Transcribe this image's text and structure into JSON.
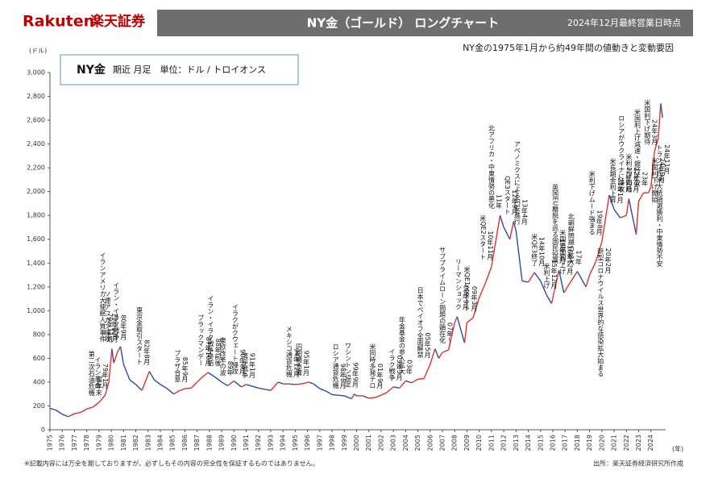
{
  "brand": {
    "name": "Rakuten",
    "name_ja": "楽天証券"
  },
  "footer": {
    "disclaimer": "※記載内容には万全を期しておりますが、必ずしもその内容の完全性を保証するものではありません。",
    "source": "出所：楽天証券経済研究所作成"
  },
  "chart_data": {
    "type": "line",
    "title": "NY金（ゴールド） ロングチャート",
    "date_note": "2024年12月最終営業日時点",
    "subtitle": "NY金の1975年1月から約49年間の値動きと変動要因",
    "box_note": "期近 月足　単位：ドル / トロイオンス",
    "y_label": "(ドル)",
    "x_label": "(年)",
    "xlim": [
      1975,
      2025.2
    ],
    "xticks": [
      1975,
      1976,
      1977,
      1978,
      1979,
      1980,
      1981,
      1982,
      1983,
      1984,
      1985,
      1986,
      1987,
      1988,
      1989,
      1990,
      1991,
      1992,
      1993,
      1994,
      1995,
      1996,
      1997,
      1998,
      1999,
      2000,
      2001,
      2002,
      2003,
      2004,
      2005,
      2006,
      2007,
      2008,
      2009,
      2010,
      2011,
      2012,
      2013,
      2014,
      2015,
      2016,
      2017,
      2018,
      2019,
      2020,
      2021,
      2022,
      2023,
      2024
    ],
    "ylim": [
      0,
      3000
    ],
    "yticks": [
      0,
      200,
      400,
      600,
      800,
      {
        "value": 1000,
        "label": "1,000"
      },
      {
        "value": 1200,
        "label": "1,200"
      },
      {
        "value": 1400,
        "label": "1,400"
      },
      {
        "value": 1600,
        "label": "1,600"
      },
      {
        "value": 1800,
        "label": "1,800"
      },
      {
        "value": 2000,
        "label": "2,000"
      },
      {
        "value": 2200,
        "label": "2,200"
      },
      {
        "value": 2400,
        "label": "2,400"
      },
      {
        "value": 2600,
        "label": "2,600"
      },
      {
        "value": 2800,
        "label": "2,800"
      },
      {
        "value": 3000,
        "label": "3,000"
      }
    ],
    "grid": false,
    "x": [
      1975,
      1975.5,
      1976,
      1976.5,
      1977,
      1977.5,
      1978,
      1978.5,
      1979,
      1979.5,
      1979.8,
      1980.05,
      1980.2,
      1980.5,
      1980.75,
      1981,
      1981.5,
      1982,
      1982.5,
      1983.1,
      1983.5,
      1984,
      1984.5,
      1985.1,
      1985.5,
      1986,
      1986.5,
      1987,
      1987.5,
      1987.9,
      1988.5,
      1989,
      1989.5,
      1990,
      1990.6,
      1991,
      1991.5,
      1992,
      1992.5,
      1993,
      1993.6,
      1994,
      1994.5,
      1995,
      1995.5,
      1996.1,
      1996.5,
      1997,
      1997.5,
      1998,
      1998.5,
      1999,
      1999.6,
      1999.8,
      2000,
      2000.5,
      2001,
      2001.5,
      2002,
      2002.5,
      2003,
      2003.5,
      2004,
      2004.5,
      2005,
      2005.5,
      2006,
      2006.4,
      2006.7,
      2007,
      2007.5,
      2008,
      2008.2,
      2008.8,
      2009,
      2009.5,
      2010,
      2010.5,
      2011,
      2011.7,
      2012,
      2012.5,
      2012.8,
      2013,
      2013.5,
      2014,
      2014.5,
      2015,
      2015.5,
      2015.9,
      2016.5,
      2016.9,
      2017.5,
      2018,
      2018.7,
      2019,
      2019.5,
      2020,
      2020.6,
      2021,
      2021.5,
      2022,
      2022.2,
      2022.8,
      2023,
      2023.4,
      2023.8,
      2024,
      2024.3,
      2024.6,
      2024.8,
      2024.95
    ],
    "series": [
      {
        "name": "NY金",
        "color": "#2a4aa8",
        "up_color": "#e0302a",
        "values": [
          180,
          165,
          130,
          110,
          135,
          145,
          175,
          190,
          230,
          290,
          400,
          680,
          560,
          650,
          700,
          550,
          420,
          380,
          330,
          490,
          420,
          380,
          350,
          300,
          325,
          345,
          350,
          400,
          450,
          480,
          440,
          400,
          370,
          410,
          360,
          380,
          365,
          350,
          340,
          330,
          400,
          385,
          385,
          380,
          385,
          400,
          385,
          345,
          325,
          295,
          290,
          285,
          260,
          300,
          285,
          285,
          265,
          270,
          290,
          315,
          360,
          350,
          410,
          395,
          425,
          430,
          550,
          680,
          600,
          650,
          670,
          900,
          950,
          730,
          900,
          940,
          1110,
          1230,
          1370,
          1800,
          1700,
          1600,
          1750,
          1670,
          1250,
          1240,
          1320,
          1250,
          1130,
          1060,
          1340,
          1150,
          1250,
          1330,
          1200,
          1300,
          1410,
          1580,
          1970,
          1850,
          1780,
          1800,
          1940,
          1640,
          1920,
          1990,
          1990,
          2040,
          2340,
          2450,
          2740,
          2620
        ]
      }
    ],
    "annotations": [
      {
        "x": 1978.7,
        "date": "78年末",
        "text": "第二次石油危機"
      },
      {
        "x": 1979.2,
        "date": "79年1月",
        "text": "イラン革命"
      },
      {
        "x": 1979.6,
        "date": "79年11月",
        "text": "イランアメリカ大使館人質事件"
      },
      {
        "x": 1980.0,
        "date": "79年12月",
        "text": "ソ連アフガン侵攻"
      },
      {
        "x": 1980.7,
        "date": "80年9月",
        "text": "イラン・イラク戦争"
      },
      {
        "x": 1982.6,
        "date": "82年8月",
        "text": "東京金取引スタート"
      },
      {
        "x": 1985.7,
        "date": "85年9月",
        "text": "プラザ合意"
      },
      {
        "x": 1987.6,
        "date": "87年10月",
        "text": "ブラックマンデー"
      },
      {
        "x": 1988.4,
        "date": "88年前後",
        "text": "イラン・イラク戦争終結"
      },
      {
        "x": 1989.4,
        "date": "89年",
        "text": "東欧改革の波"
      },
      {
        "x": 1990.4,
        "date": "90年8月",
        "text": "イラクがクウェート侵攻"
      },
      {
        "x": 1991.2,
        "date": "91年1月",
        "text": "湾岸戦争"
      },
      {
        "x": 1994.8,
        "date": "94年12月",
        "text": "メキシコ通貨危機"
      },
      {
        "x": 1995.6,
        "date": "95年1月",
        "text": "円相場急騰"
      },
      {
        "x": 1998.6,
        "date": "98年8月",
        "text": "ロシア通貨危機"
      },
      {
        "x": 1999.6,
        "date": "99年9月",
        "text": "ワシントン協定"
      },
      {
        "x": 2001.6,
        "date": "01年9月",
        "text": "米同時多発テロ"
      },
      {
        "x": 2003.2,
        "date": "03年3月",
        "text": "イラク戦争"
      },
      {
        "x": 2004.0,
        "date": "03年",
        "text": "年金基金の参入拡大"
      },
      {
        "x": 2005.5,
        "date": "05年5月",
        "text": "日本でペイオフ全面解禁"
      },
      {
        "x": 2007.3,
        "date": "07年～",
        "text": "サブプライムローン問題の顕在化"
      },
      {
        "x": 2008.6,
        "date": "08年9月",
        "text": "リーマンショック"
      },
      {
        "x": 2009.3,
        "date": "09年3月",
        "text": "米QE1スタート"
      },
      {
        "x": 2010.6,
        "date": "10年11月",
        "text": "米QE2スタート"
      },
      {
        "x": 2011.3,
        "date": "11年",
        "text": "北アフリカ・中東情勢の悪化"
      },
      {
        "x": 2012.6,
        "date": "12年9月",
        "text": "QE3スタート"
      },
      {
        "x": 2013.4,
        "date": "13年4月",
        "text": "アベノミクスによる円安進行"
      },
      {
        "x": 2014.8,
        "date": "14年10月",
        "text": "米QE3終了"
      },
      {
        "x": 2015.8,
        "date": "15年12月",
        "text": "米利上げ"
      },
      {
        "x": 2016.5,
        "date": "16年6月",
        "text": "英国EU離脱を巡る国民投票"
      },
      {
        "x": 2017.1,
        "date": "16年12月",
        "text": "米国追加利上げ"
      },
      {
        "x": 2017.8,
        "date": "17年",
        "text": "北朝鮮問題の拡大"
      },
      {
        "x": 2019.5,
        "date": "19年8月",
        "text": "米利下げムード強まる"
      },
      {
        "x": 2020.2,
        "date": "20年2月",
        "text": "新型コロナウイルス世界的な感染拡大始まる"
      },
      {
        "x": 2021.2,
        "date": "21年1月",
        "text": "米長期金利上昇"
      },
      {
        "x": 2021.9,
        "date": "22年2月",
        "text": "ロシアがウクライナに侵攻"
      },
      {
        "x": 2022.5,
        "date": "22年3月",
        "text": "米利上げ開始"
      },
      {
        "x": 2023.2,
        "date": "23年",
        "text": "米国利上げ減速・銀行不安"
      },
      {
        "x": 2024.0,
        "date": "24年3月",
        "text": "米国利下げ期待"
      },
      {
        "x": 2024.6,
        "date": "24年9月",
        "text": "米国利下げ開始"
      },
      {
        "x": 2025.0,
        "date": "24年11月",
        "text": "トランプ氏米大統領選勝利・中東情勢不安"
      }
    ]
  }
}
